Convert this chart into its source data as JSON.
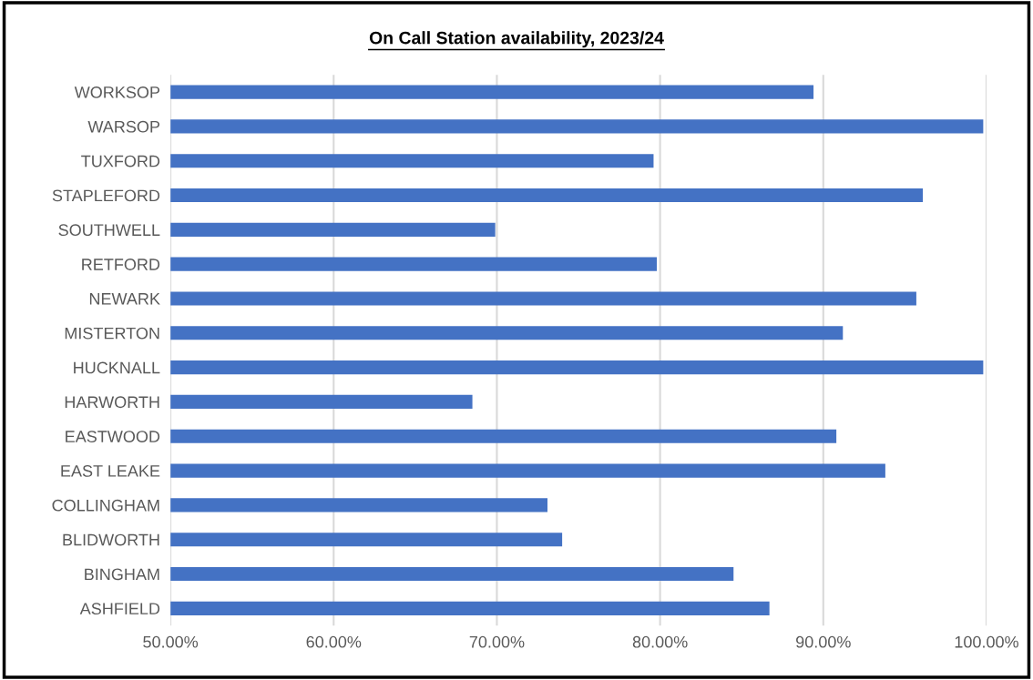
{
  "chart_data": {
    "type": "bar",
    "orientation": "horizontal",
    "title": "On Call Station availability, 2023/24",
    "categories": [
      "WORKSOP",
      "WARSOP",
      "TUXFORD",
      "STAPLEFORD",
      "SOUTHWELL",
      "RETFORD",
      "NEWARK",
      "MISTERTON",
      "HUCKNALL",
      "HARWORTH",
      "EASTWOOD",
      "EAST LEAKE",
      "COLLINGHAM",
      "BLIDWORTH",
      "BINGHAM",
      "ASHFIELD"
    ],
    "values": [
      89.4,
      99.8,
      79.6,
      96.1,
      69.9,
      79.8,
      95.7,
      91.2,
      99.8,
      68.5,
      90.8,
      93.8,
      73.1,
      74.0,
      84.5,
      86.7
    ],
    "color": "#4472c4",
    "xlim": [
      50,
      100
    ],
    "xticks": [
      {
        "value": 50,
        "label": "50.00%"
      },
      {
        "value": 60,
        "label": "60.00%"
      },
      {
        "value": 70,
        "label": "70.00%"
      },
      {
        "value": 80,
        "label": "80.00%"
      },
      {
        "value": 90,
        "label": "90.00%"
      },
      {
        "value": 100,
        "label": "100.00%"
      }
    ],
    "grid": "x",
    "legend": false
  }
}
